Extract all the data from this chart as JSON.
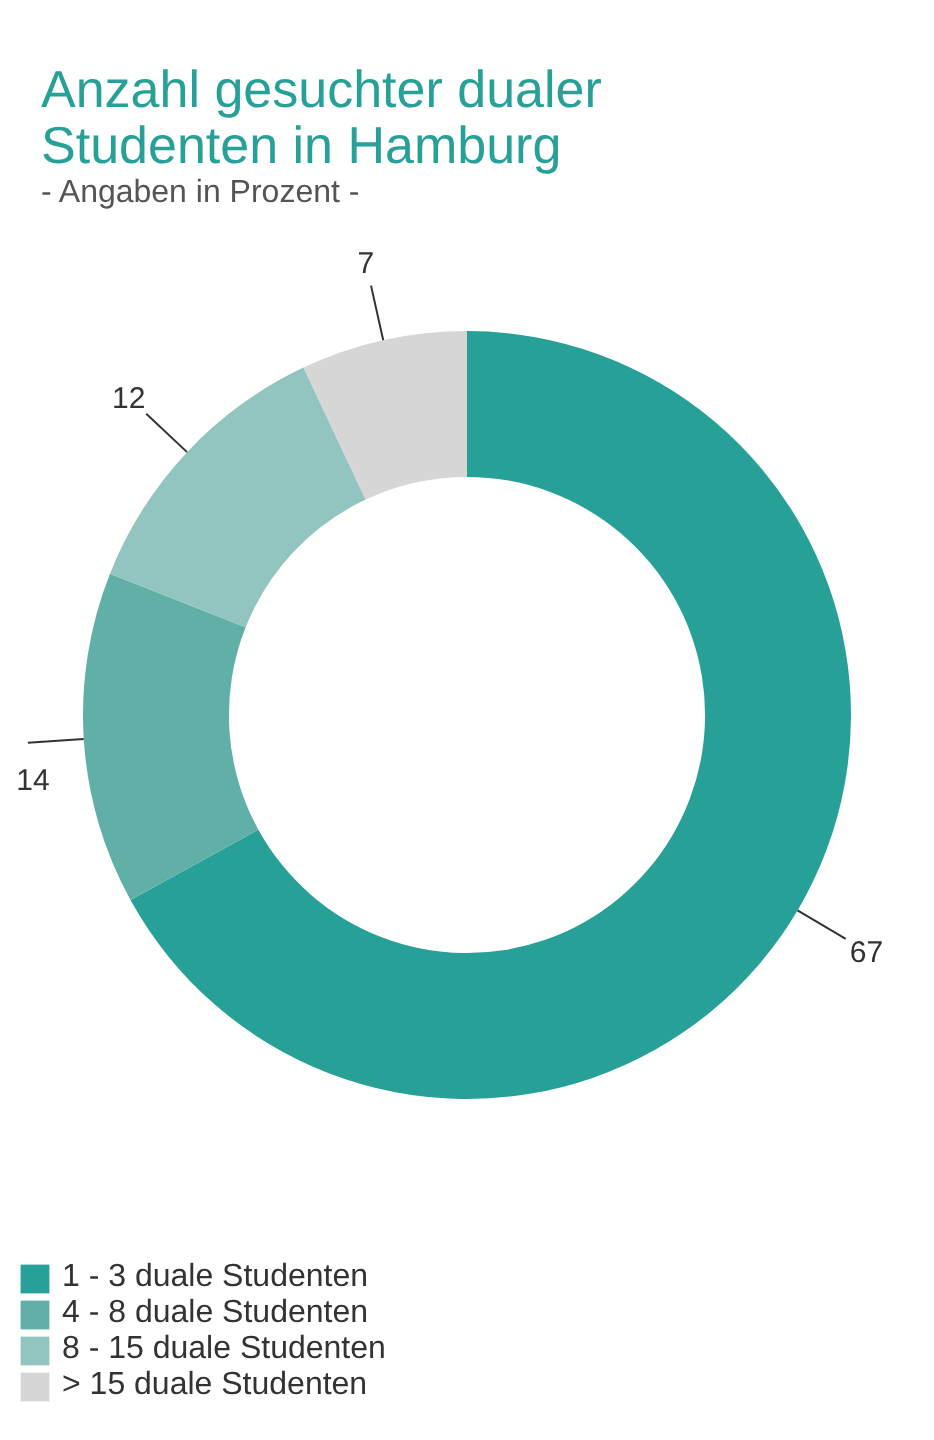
{
  "chart_data": {
    "type": "donut",
    "title": "Anzahl gesuchter dualer\nStudenten in Hamburg",
    "subtitle": "- Angaben in Prozent -",
    "categories": [
      "1 - 3 duale Studenten",
      "4 - 8 duale Studenten",
      "8 - 15 duale Studenten",
      "> 15 duale Studenten"
    ],
    "values": [
      67,
      14,
      12,
      7
    ],
    "colors": [
      "#27a097",
      "#60b0a8",
      "#93c5c0",
      "#d6d6d6"
    ],
    "data_labels": true,
    "legend": "bottom left"
  }
}
